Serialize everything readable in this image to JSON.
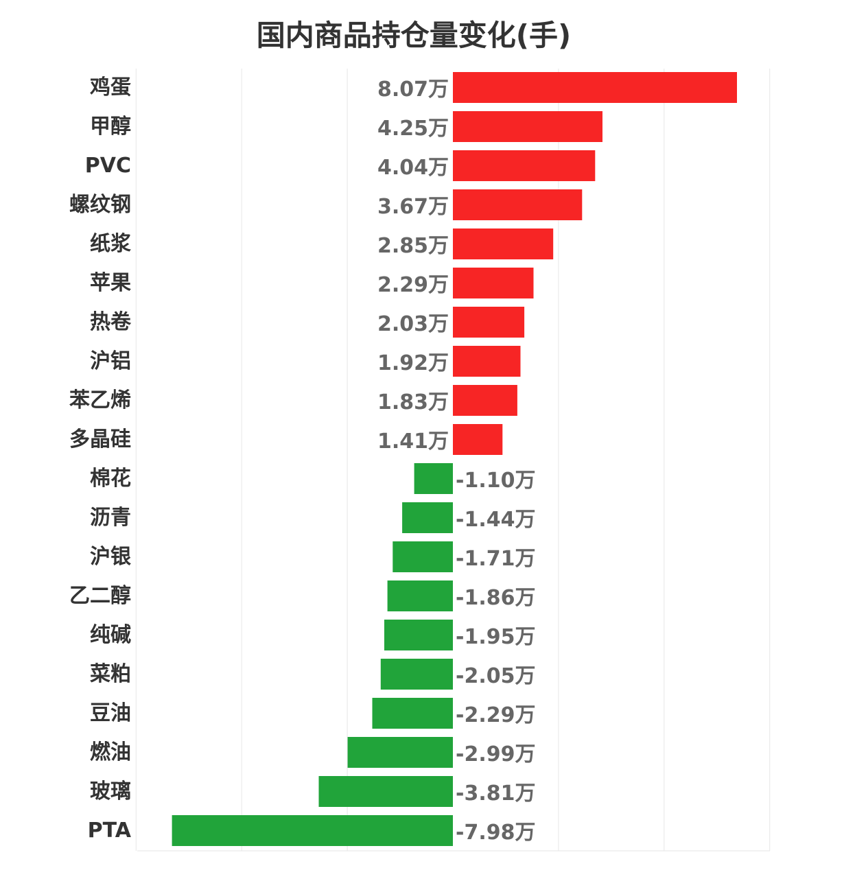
{
  "chart_data": {
    "type": "bar",
    "orientation": "horizontal",
    "title": "国内商品持仓量变化(手)",
    "unit_suffix": "万",
    "categories": [
      "鸡蛋",
      "甲醇",
      "PVC",
      "螺纹钢",
      "纸浆",
      "苹果",
      "热卷",
      "沪铝",
      "苯乙烯",
      "多晶硅",
      "棉花",
      "沥青",
      "沪银",
      "乙二醇",
      "纯碱",
      "菜粕",
      "豆油",
      "燃油",
      "玻璃",
      "PTA"
    ],
    "values": [
      8.07,
      4.25,
      4.04,
      3.67,
      2.85,
      2.29,
      2.03,
      1.92,
      1.83,
      1.41,
      -1.1,
      -1.44,
      -1.71,
      -1.86,
      -1.95,
      -2.05,
      -2.29,
      -2.99,
      -3.81,
      -7.98
    ],
    "value_labels": [
      "8.07万",
      "4.25万",
      "4.04万",
      "3.67万",
      "2.85万",
      "2.29万",
      "2.03万",
      "1.92万",
      "1.83万",
      "1.41万",
      "-1.10万",
      "-1.44万",
      "-1.71万",
      "-1.86万",
      "-1.95万",
      "-2.05万",
      "-2.29万",
      "-2.99万",
      "-3.81万",
      "-7.98万"
    ],
    "xlim": [
      -9,
      9
    ],
    "grid": true,
    "colors": {
      "positive": "#f72525",
      "negative": "#21a43a",
      "grid": "#e6e6e6",
      "category_text": "#333333",
      "value_text": "#666666"
    }
  }
}
